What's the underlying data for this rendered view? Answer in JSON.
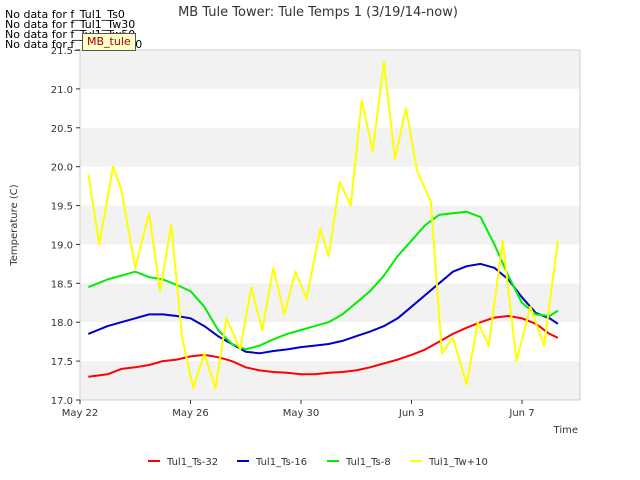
{
  "no_data_messages": [
    "No data for f_Tul1_Ts0",
    "No data for f_Tul1_Tw30",
    "No data for f_Tul1_Tw50",
    "No data for f_Tul1_Tw100"
  ],
  "site_badge": "MB_tule",
  "chart_data": {
    "type": "line",
    "title": "MB Tule Tower: Tule Temps 1 (3/19/14-now)",
    "xlabel": "Time",
    "ylabel": "Temperature (C)",
    "xlim_days": [
      0,
      18.1
    ],
    "ylim": [
      17.0,
      21.5
    ],
    "xticks": [
      {
        "day": 0,
        "label": "May 22"
      },
      {
        "day": 4,
        "label": "May 26"
      },
      {
        "day": 8,
        "label": "May 30"
      },
      {
        "day": 12,
        "label": "Jun 3"
      },
      {
        "day": 16,
        "label": "Jun 7"
      }
    ],
    "yticks": [
      17.0,
      17.5,
      18.0,
      18.5,
      19.0,
      19.5,
      20.0,
      20.5,
      21.0,
      21.5
    ],
    "ytick_labels": [
      "17.0",
      "17.5",
      "18.0",
      "18.5",
      "19.0",
      "19.5",
      "20.0",
      "20.5",
      "21.0",
      "21.5"
    ],
    "legend_position": "bottom",
    "series": [
      {
        "name": "Tul1_Ts-32",
        "color": "#ff0000",
        "x": [
          0.3,
          1.0,
          1.5,
          2.0,
          2.5,
          3.0,
          3.5,
          4.0,
          4.5,
          5.0,
          5.5,
          6.0,
          6.5,
          7.0,
          7.5,
          8.0,
          8.5,
          9.0,
          9.5,
          10.0,
          10.5,
          11.0,
          11.5,
          12.0,
          12.5,
          13.0,
          13.5,
          14.0,
          14.5,
          15.0,
          15.5,
          16.0,
          16.5,
          17.0,
          17.3
        ],
        "y": [
          17.3,
          17.33,
          17.4,
          17.42,
          17.45,
          17.5,
          17.52,
          17.56,
          17.58,
          17.55,
          17.5,
          17.42,
          17.38,
          17.36,
          17.35,
          17.33,
          17.33,
          17.35,
          17.36,
          17.38,
          17.42,
          17.47,
          17.52,
          17.58,
          17.65,
          17.75,
          17.85,
          17.93,
          18.0,
          18.06,
          18.08,
          18.05,
          17.98,
          17.85,
          17.8
        ]
      },
      {
        "name": "Tul1_Ts-16",
        "color": "#0000cc",
        "x": [
          0.3,
          1.0,
          1.5,
          2.0,
          2.5,
          3.0,
          3.5,
          4.0,
          4.5,
          5.0,
          5.5,
          6.0,
          6.5,
          7.0,
          7.5,
          8.0,
          8.5,
          9.0,
          9.5,
          10.0,
          10.5,
          11.0,
          11.5,
          12.0,
          12.5,
          13.0,
          13.5,
          14.0,
          14.5,
          15.0,
          15.5,
          16.0,
          16.5,
          17.0,
          17.3
        ],
        "y": [
          17.85,
          17.95,
          18.0,
          18.05,
          18.1,
          18.1,
          18.08,
          18.05,
          17.95,
          17.82,
          17.72,
          17.62,
          17.6,
          17.63,
          17.65,
          17.68,
          17.7,
          17.72,
          17.76,
          17.82,
          17.88,
          17.95,
          18.05,
          18.2,
          18.35,
          18.5,
          18.65,
          18.72,
          18.75,
          18.7,
          18.55,
          18.32,
          18.12,
          18.05,
          17.98
        ]
      },
      {
        "name": "Tul1_Ts-8",
        "color": "#00ee00",
        "x": [
          0.3,
          1.0,
          1.5,
          2.0,
          2.5,
          3.0,
          3.5,
          4.0,
          4.5,
          5.0,
          5.5,
          6.0,
          6.5,
          7.0,
          7.5,
          8.0,
          8.5,
          9.0,
          9.5,
          10.0,
          10.5,
          11.0,
          11.5,
          12.0,
          12.5,
          13.0,
          13.5,
          14.0,
          14.5,
          15.0,
          15.5,
          16.0,
          16.5,
          17.0,
          17.3
        ],
        "y": [
          18.45,
          18.55,
          18.6,
          18.65,
          18.58,
          18.55,
          18.48,
          18.4,
          18.2,
          17.9,
          17.72,
          17.65,
          17.7,
          17.78,
          17.85,
          17.9,
          17.95,
          18.0,
          18.1,
          18.25,
          18.4,
          18.6,
          18.85,
          19.05,
          19.25,
          19.38,
          19.4,
          19.42,
          19.35,
          19.0,
          18.6,
          18.25,
          18.1,
          18.08,
          18.15
        ]
      },
      {
        "name": "Tul1_Tw+10",
        "color": "#ffff00",
        "x": [
          0.3,
          0.7,
          1.2,
          1.5,
          2.0,
          2.5,
          2.9,
          3.3,
          3.7,
          4.1,
          4.5,
          4.9,
          5.3,
          5.8,
          6.2,
          6.6,
          7.0,
          7.4,
          7.8,
          8.2,
          8.7,
          9.0,
          9.4,
          9.8,
          10.2,
          10.6,
          11.0,
          11.4,
          11.8,
          12.2,
          12.7,
          13.1,
          13.5,
          14.0,
          14.4,
          14.8,
          15.3,
          15.8,
          16.3,
          16.8,
          17.3
        ],
        "y": [
          19.9,
          19.0,
          20.0,
          19.7,
          18.7,
          19.4,
          18.4,
          19.25,
          17.8,
          17.15,
          17.6,
          17.15,
          18.05,
          17.65,
          18.45,
          17.9,
          18.7,
          18.1,
          18.65,
          18.3,
          19.2,
          18.85,
          19.8,
          19.5,
          20.85,
          20.2,
          21.35,
          20.1,
          20.75,
          19.95,
          19.55,
          17.6,
          17.8,
          17.2,
          18.0,
          17.7,
          19.05,
          17.5,
          18.2,
          17.7,
          19.05
        ]
      }
    ]
  }
}
